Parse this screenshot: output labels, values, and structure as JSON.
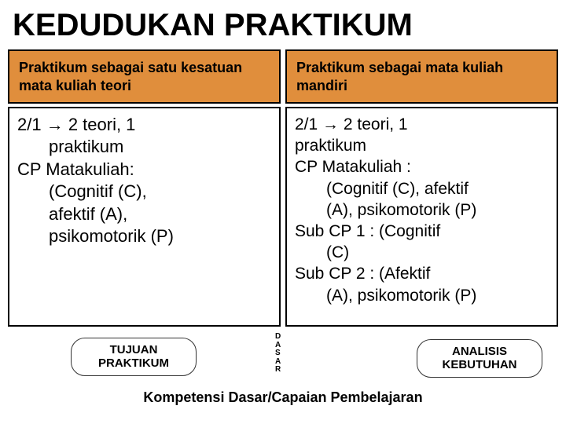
{
  "title": "KEDUDUKAN PRAKTIKUM",
  "headers": {
    "left": "Praktikum sebagai satu kesatuan mata kuliah teori",
    "right": "Praktikum sebagai mata kuliah mandiri"
  },
  "arrow": "→",
  "content_left": {
    "l1a": "2/1 ",
    "l1b": " 2 teori, 1",
    "l2": "praktikum",
    "l3": "CP Matakuliah:",
    "l4": "(Cognitif (C),",
    "l5": "afektif (A),",
    "l6": "psikomotorik (P)"
  },
  "content_right": {
    "l1a": "2/1 ",
    "l1b": " 2 teori, 1",
    "l2": "praktikum",
    "l3": "CP Matakuliah   :",
    "l4": "(Cognitif (C), afektif",
    "l5": "(A),  psikomotorik (P)",
    "l6": "Sub CP 1   : (Cognitif",
    "l7": "(C)",
    "l8": "Sub CP 2   : (Afektif",
    "l9": "(A), psikomotorik (P)"
  },
  "buttons": {
    "tujuan_l1": "TUJUAN",
    "tujuan_l2": "PRAKTIKUM",
    "analisis_l1": "ANALISIS",
    "analisis_l2": "KEBUTUHAN"
  },
  "dasar_letters": {
    "d": "D",
    "a1": "A",
    "s": "S",
    "a2": "A",
    "r": "R"
  },
  "footer": "Kompetensi Dasar/Capaian Pembelajaran",
  "colors": {
    "header_bg": "#e08e3c",
    "border": "#000000",
    "bg": "#ffffff",
    "text": "#000000"
  }
}
